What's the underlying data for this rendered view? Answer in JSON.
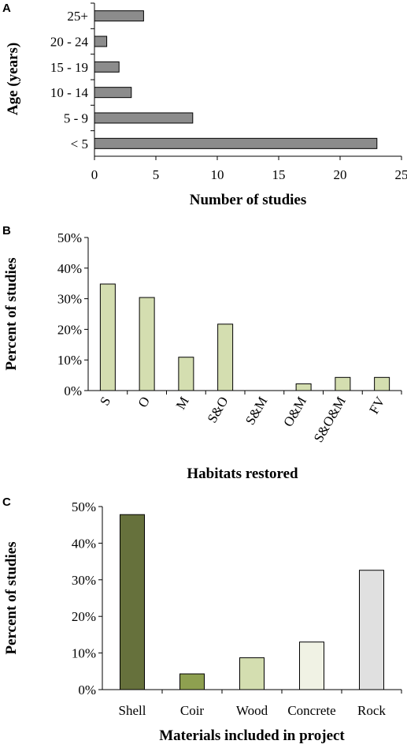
{
  "chart_data": [
    {
      "panel": "A",
      "type": "bar",
      "orientation": "horizontal",
      "categories": [
        "25+",
        "20 - 24",
        "15 - 19",
        "10 - 14",
        "5 - 9",
        "< 5"
      ],
      "values": [
        4,
        1,
        2,
        3,
        8,
        23
      ],
      "xlabel": "Number of studies",
      "ylabel": "Age (years)",
      "xlim": [
        0,
        25
      ],
      "xticks": [
        "0",
        "5",
        "10",
        "15",
        "20",
        "25"
      ],
      "grid": false,
      "colors": {
        "bar": "#8c8c8c"
      }
    },
    {
      "panel": "B",
      "type": "bar",
      "categories": [
        "S",
        "O",
        "M",
        "S&O",
        "S&M",
        "O&M",
        "S&O&M",
        "FV"
      ],
      "values": [
        34.8,
        30.4,
        10.9,
        21.7,
        0,
        2.2,
        4.3,
        4.3
      ],
      "xlabel": "Habitats restored",
      "ylabel": "Percent of studies",
      "ylim": [
        0,
        50
      ],
      "yticks": [
        "0%",
        "10%",
        "20%",
        "30%",
        "40%",
        "50%"
      ],
      "grid": false,
      "colors": {
        "bar": "#d4deb0"
      }
    },
    {
      "panel": "C",
      "type": "bar",
      "categories": [
        "Shell",
        "Coir",
        "Wood",
        "Concrete",
        "Rock"
      ],
      "values": [
        47.8,
        4.3,
        8.7,
        13.0,
        32.6
      ],
      "xlabel": "Materials included in project",
      "ylabel": "Percent of studies",
      "ylim": [
        0,
        50
      ],
      "yticks": [
        "0%",
        "10%",
        "20%",
        "30%",
        "40%",
        "50%"
      ],
      "grid": false,
      "colors": {
        "bars": [
          "#66713c",
          "#8ea050",
          "#d4deb0",
          "#f0f2e4",
          "#e0e0e0"
        ]
      }
    }
  ]
}
